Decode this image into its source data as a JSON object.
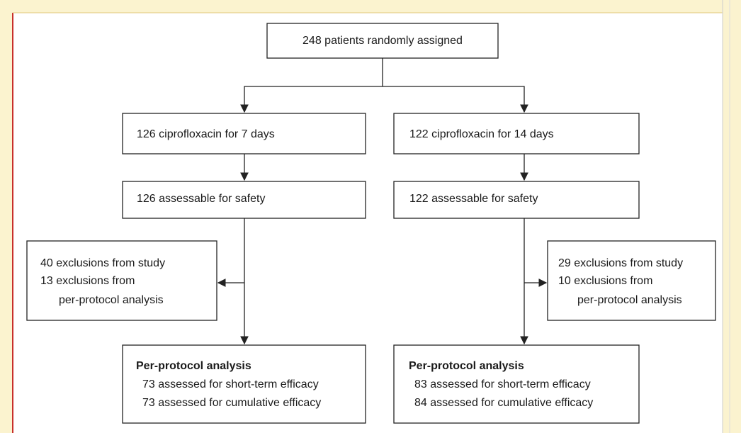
{
  "nodes": [
    {
      "label": "248 patients randomly assigned"
    },
    {
      "label": "126 ciprofloxacin for 7 days"
    },
    {
      "label": "122 ciprofloxacin for 14 days"
    },
    {
      "label": "126 assessable for safety"
    },
    {
      "label": "122 assessable for safety"
    },
    {
      "lines": [
        "40 exclusions from study",
        "13 exclusions from",
        "per-protocol analysis"
      ]
    },
    {
      "lines": [
        "29 exclusions from study",
        "10 exclusions from",
        "per-protocol analysis"
      ]
    },
    {
      "title": "Per-protocol analysis",
      "lines": [
        "73 assessed for short-term efficacy",
        "73 assessed for cumulative efficacy"
      ]
    },
    {
      "title": "Per-protocol analysis",
      "lines": [
        "83 assessed for short-term efficacy",
        "84 assessed for cumulative efficacy"
      ]
    }
  ]
}
